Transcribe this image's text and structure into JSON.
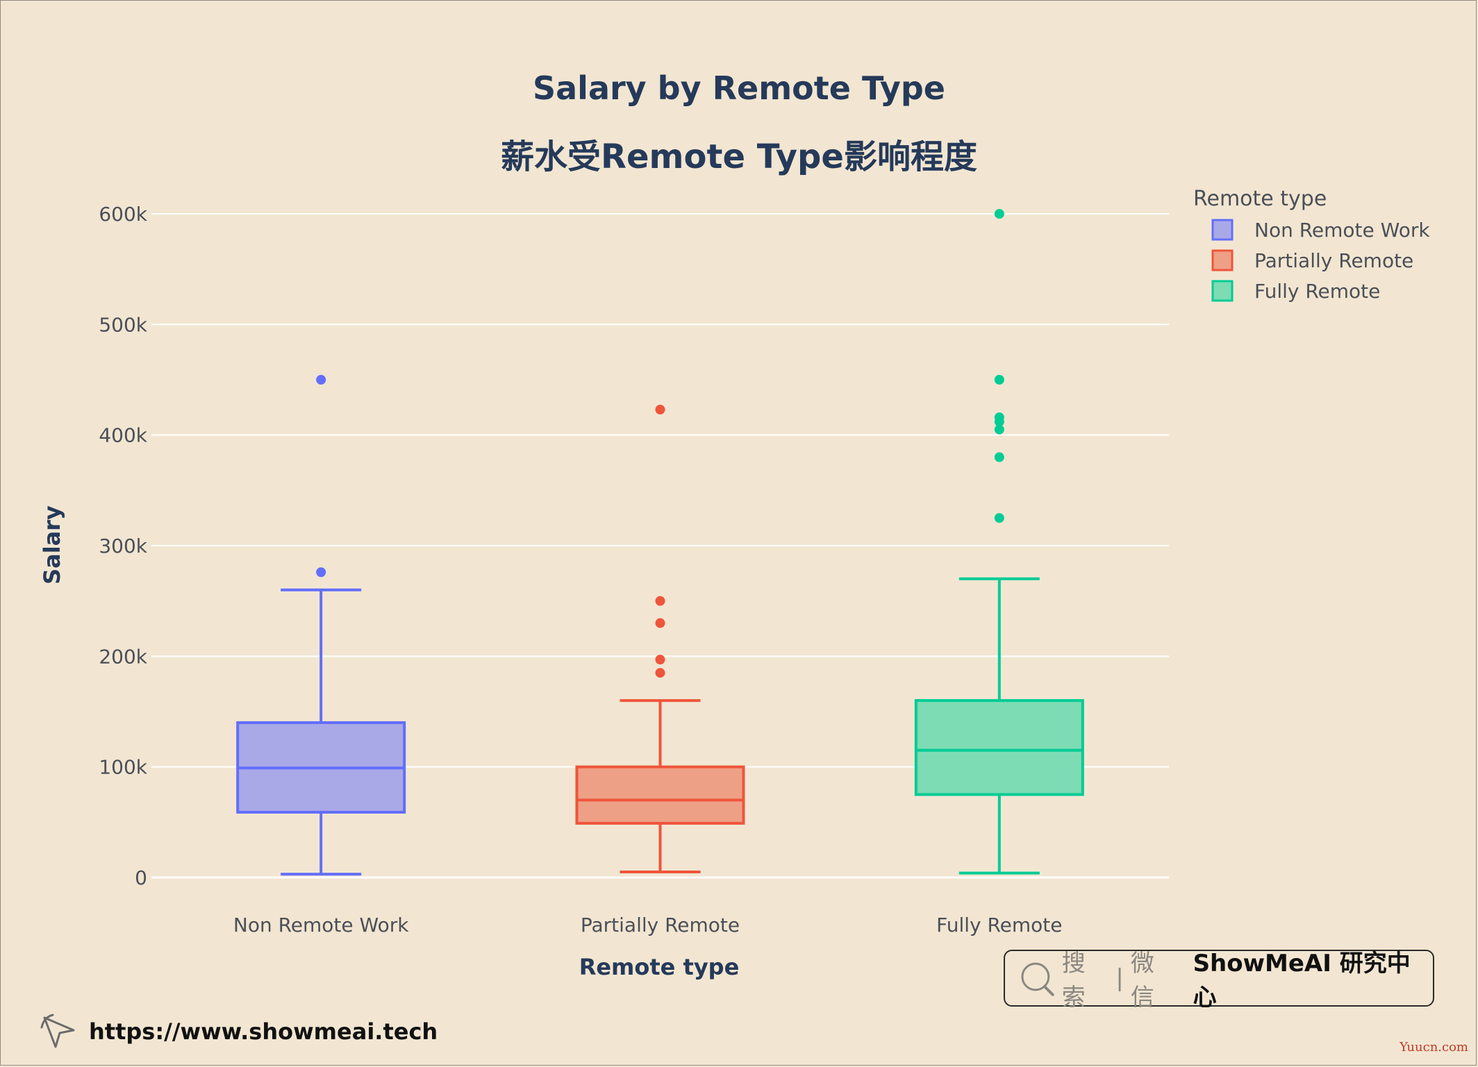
{
  "chart_data": {
    "type": "box",
    "title": "Salary by Remote Type",
    "subtitle": "薪水受Remote Type影响程度",
    "xlabel": "Remote type",
    "ylabel": "Salary",
    "ylim": [
      -10000,
      610000
    ],
    "yticks": [
      0,
      100000,
      200000,
      300000,
      400000,
      500000,
      600000
    ],
    "ytick_labels": [
      "0",
      "100k",
      "200k",
      "300k",
      "400k",
      "500k",
      "600k"
    ],
    "grid": true,
    "legend": {
      "title": "Remote type",
      "position": "top-right"
    },
    "categories": [
      "Non Remote Work",
      "Partially Remote",
      "Fully Remote"
    ],
    "series": [
      {
        "name": "Non Remote Work",
        "color": "#636efa",
        "fill": "#aaa9e8",
        "whisker_low": 3000,
        "q1": 59000,
        "median": 99000,
        "q3": 140000,
        "whisker_high": 260000,
        "outliers": [
          276000,
          450000
        ]
      },
      {
        "name": "Partially Remote",
        "color": "#ef553b",
        "fill": "#eea086",
        "whisker_low": 5000,
        "q1": 49000,
        "median": 70000,
        "q3": 100000,
        "whisker_high": 160000,
        "outliers": [
          185000,
          197000,
          230000,
          250000,
          423000
        ]
      },
      {
        "name": "Fully Remote",
        "color": "#00cc96",
        "fill": "#7ddcb3",
        "whisker_low": 4000,
        "q1": 75000,
        "median": 115000,
        "q3": 160000,
        "whisker_high": 270000,
        "outliers": [
          325000,
          380000,
          405000,
          412000,
          416000,
          450000,
          600000
        ]
      }
    ]
  },
  "branding": {
    "search_hint": "搜索",
    "search_sep": "|",
    "search_channel": "微信",
    "brand_name": "ShowMeAI 研究中心",
    "url": "https://www.showmeai.tech",
    "watermark": "Yuucn.com",
    "icons": [
      "magnifier-icon",
      "cursor-icon"
    ]
  }
}
